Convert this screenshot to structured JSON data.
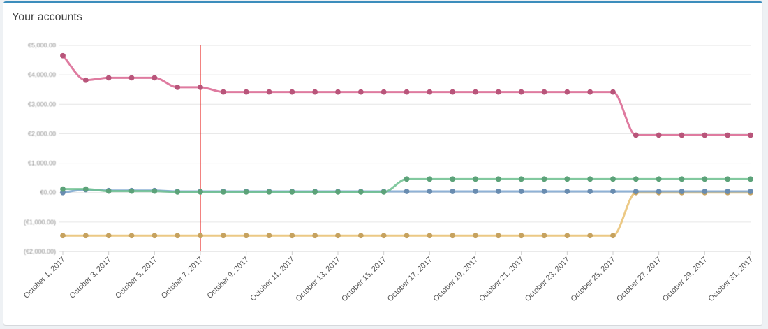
{
  "panel": {
    "title": "Your accounts"
  },
  "chart_data": {
    "type": "line",
    "title": "",
    "xlabel": "",
    "ylabel": "",
    "x": [
      "October 1, 2017",
      "October 2, 2017",
      "October 3, 2017",
      "October 4, 2017",
      "October 5, 2017",
      "October 6, 2017",
      "October 7, 2017",
      "October 8, 2017",
      "October 9, 2017",
      "October 10, 2017",
      "October 11, 2017",
      "October 12, 2017",
      "October 13, 2017",
      "October 14, 2017",
      "October 15, 2017",
      "October 16, 2017",
      "October 17, 2017",
      "October 18, 2017",
      "October 19, 2017",
      "October 20, 2017",
      "October 21, 2017",
      "October 22, 2017",
      "October 23, 2017",
      "October 24, 2017",
      "October 25, 2017",
      "October 26, 2017",
      "October 27, 2017",
      "October 28, 2017",
      "October 29, 2017",
      "October 30, 2017",
      "October 31, 2017"
    ],
    "xtick_labels": [
      "October 1, 2017",
      "October 3, 2017",
      "October 5, 2017",
      "October 7, 2017",
      "October 9, 2017",
      "October 11, 2017",
      "October 13, 2017",
      "October 15, 2017",
      "October 17, 2017",
      "October 19, 2017",
      "October 21, 2017",
      "October 23, 2017",
      "October 25, 2017",
      "October 27, 2017",
      "October 29, 2017",
      "October 31, 2017"
    ],
    "ytick_labels": [
      "€5,000.00",
      "€4,000.00",
      "€3,000.00",
      "€2,000.00",
      "€1,000.00",
      "€0.00",
      "(€1,000.00)",
      "(€2,000.00)"
    ],
    "ylim": [
      -2000,
      5000
    ],
    "grid": true,
    "legend": "none",
    "cursor_x": "October 7, 2017",
    "cursor_color": "#e8302c",
    "series": [
      {
        "color": "#d9648f",
        "values": [
          4650,
          3820,
          3900,
          3900,
          3900,
          3580,
          3580,
          3420,
          3420,
          3420,
          3420,
          3420,
          3420,
          3420,
          3420,
          3420,
          3420,
          3420,
          3420,
          3420,
          3420,
          3420,
          3420,
          3420,
          3420,
          1950,
          1950,
          1950,
          1950,
          1950,
          1950
        ]
      },
      {
        "color": "#6cbf8e",
        "values": [
          120,
          120,
          50,
          50,
          50,
          20,
          20,
          20,
          20,
          20,
          20,
          20,
          20,
          20,
          20,
          460,
          460,
          460,
          460,
          460,
          460,
          460,
          460,
          460,
          460,
          460,
          460,
          460,
          460,
          460,
          460
        ]
      },
      {
        "color": "#7ba5cf",
        "values": [
          0,
          100,
          70,
          70,
          70,
          40,
          40,
          40,
          40,
          40,
          40,
          40,
          40,
          40,
          40,
          40,
          40,
          40,
          40,
          40,
          40,
          40,
          40,
          40,
          40,
          40,
          40,
          40,
          40,
          40,
          40
        ]
      },
      {
        "color": "#e9bf70",
        "values": [
          -1460,
          -1460,
          -1460,
          -1460,
          -1460,
          -1460,
          -1460,
          -1460,
          -1460,
          -1460,
          -1460,
          -1460,
          -1460,
          -1460,
          -1460,
          -1460,
          -1460,
          -1460,
          -1460,
          -1460,
          -1460,
          -1460,
          -1460,
          -1460,
          -1460,
          0,
          0,
          0,
          0,
          0,
          0
        ]
      }
    ]
  }
}
